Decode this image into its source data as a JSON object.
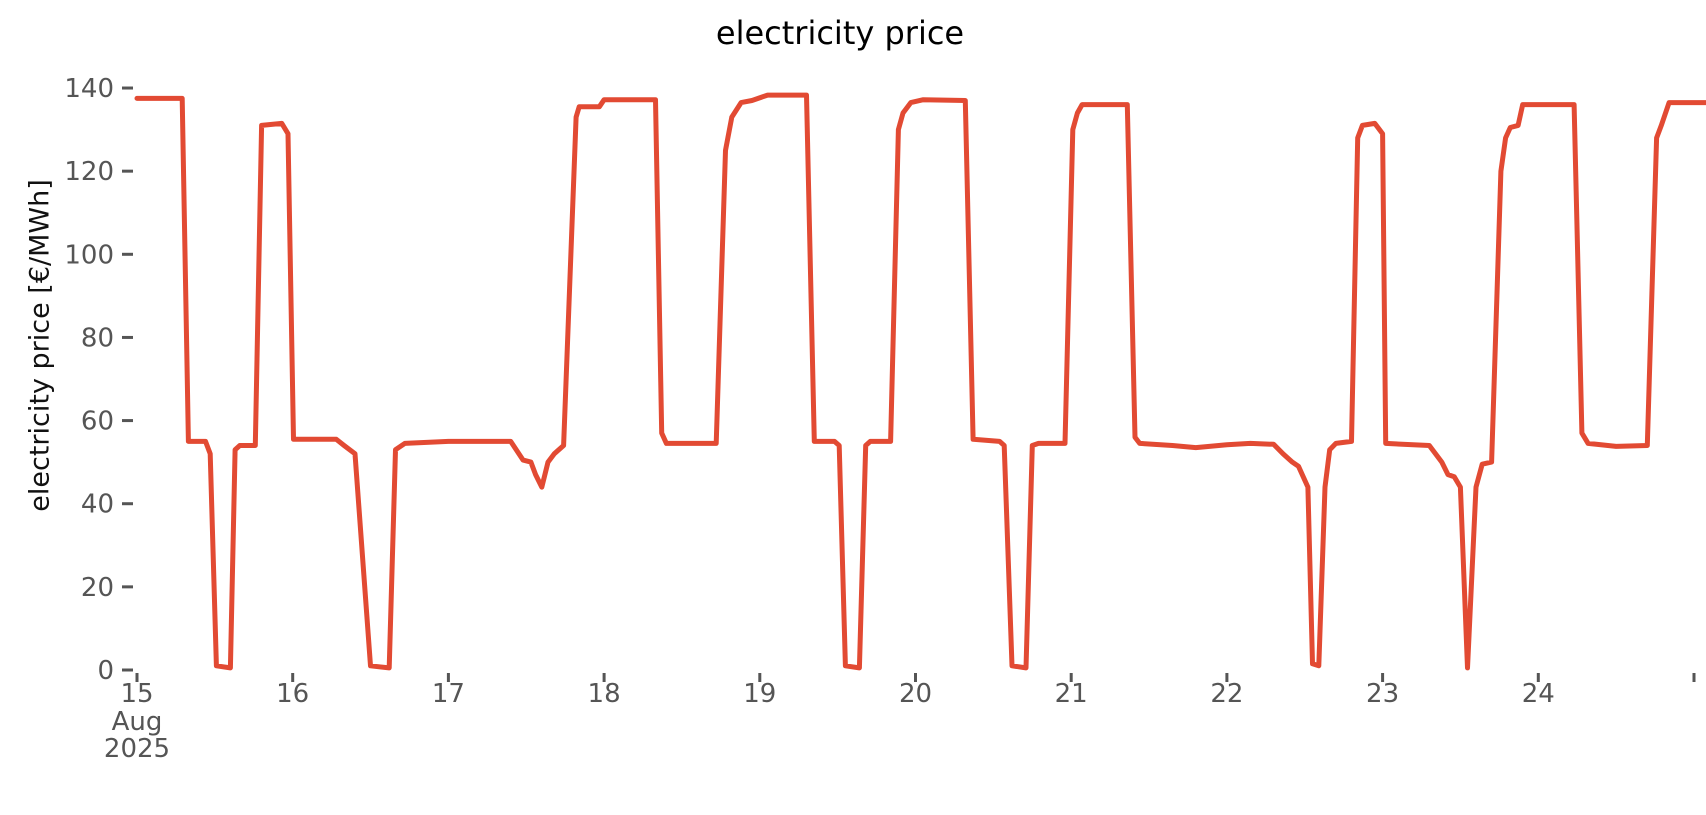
{
  "chart_data": {
    "type": "line",
    "title": "electricity price",
    "ylabel": "electricity price [€/MWh]",
    "xlabel": "",
    "ylim": [
      0,
      140
    ],
    "y_ticks": [
      0,
      20,
      40,
      60,
      80,
      100,
      120,
      140
    ],
    "x_axis": {
      "unit": "days since 2025-08-15 00:00",
      "tick_days": [
        0,
        1,
        2,
        3,
        4,
        5,
        6,
        7,
        8,
        9,
        10
      ],
      "tick_labels": [
        "15",
        "16",
        "17",
        "18",
        "19",
        "20",
        "21",
        "22",
        "23",
        "24",
        ""
      ],
      "first_tick_sub_labels": [
        "Aug",
        "2025"
      ]
    },
    "grid": false,
    "legend": "none",
    "series": [
      {
        "name": "electricity price",
        "unit": "€/MWh",
        "color": "#E24A33",
        "points": [
          [
            0.0,
            137.5
          ],
          [
            0.29,
            137.5
          ],
          [
            0.33,
            55
          ],
          [
            0.44,
            55
          ],
          [
            0.47,
            52
          ],
          [
            0.51,
            1
          ],
          [
            0.6,
            0.5
          ],
          [
            0.63,
            53
          ],
          [
            0.66,
            54
          ],
          [
            0.76,
            54
          ],
          [
            0.8,
            131
          ],
          [
            0.93,
            131.5
          ],
          [
            0.97,
            129
          ],
          [
            1.005,
            55.5
          ],
          [
            1.28,
            55.5
          ],
          [
            1.33,
            54
          ],
          [
            1.4,
            52
          ],
          [
            1.5,
            1
          ],
          [
            1.62,
            0.5
          ],
          [
            1.66,
            53
          ],
          [
            1.72,
            54.5
          ],
          [
            2.0,
            55
          ],
          [
            2.4,
            55
          ],
          [
            2.48,
            50.5
          ],
          [
            2.53,
            50
          ],
          [
            2.56,
            47
          ],
          [
            2.6,
            44
          ],
          [
            2.64,
            50
          ],
          [
            2.68,
            52
          ],
          [
            2.74,
            54
          ],
          [
            2.82,
            133
          ],
          [
            2.84,
            135.5
          ],
          [
            2.97,
            135.5
          ],
          [
            3.0,
            137.2
          ],
          [
            3.33,
            137.2
          ],
          [
            3.37,
            57
          ],
          [
            3.4,
            54.5
          ],
          [
            3.72,
            54.5
          ],
          [
            3.78,
            125
          ],
          [
            3.82,
            133
          ],
          [
            3.88,
            136.5
          ],
          [
            3.95,
            137
          ],
          [
            4.05,
            138.3
          ],
          [
            4.3,
            138.3
          ],
          [
            4.35,
            55
          ],
          [
            4.48,
            55
          ],
          [
            4.51,
            54
          ],
          [
            4.55,
            1
          ],
          [
            4.64,
            0.5
          ],
          [
            4.68,
            54
          ],
          [
            4.71,
            55
          ],
          [
            4.84,
            55
          ],
          [
            4.89,
            130
          ],
          [
            4.92,
            134
          ],
          [
            4.97,
            136.5
          ],
          [
            5.05,
            137.2
          ],
          [
            5.32,
            137
          ],
          [
            5.37,
            55.5
          ],
          [
            5.54,
            55
          ],
          [
            5.57,
            54
          ],
          [
            5.62,
            1
          ],
          [
            5.71,
            0.5
          ],
          [
            5.75,
            54
          ],
          [
            5.79,
            54.5
          ],
          [
            5.96,
            54.5
          ],
          [
            6.01,
            130
          ],
          [
            6.04,
            134
          ],
          [
            6.07,
            136
          ],
          [
            6.36,
            136
          ],
          [
            6.41,
            56
          ],
          [
            6.44,
            54.5
          ],
          [
            6.65,
            54
          ],
          [
            6.8,
            53.5
          ],
          [
            7.0,
            54.2
          ],
          [
            7.15,
            54.5
          ],
          [
            7.3,
            54.3
          ],
          [
            7.36,
            52
          ],
          [
            7.42,
            50
          ],
          [
            7.46,
            49
          ],
          [
            7.52,
            44
          ],
          [
            7.55,
            1.5
          ],
          [
            7.59,
            1
          ],
          [
            7.63,
            44
          ],
          [
            7.66,
            53
          ],
          [
            7.7,
            54.5
          ],
          [
            7.8,
            55
          ],
          [
            7.84,
            128
          ],
          [
            7.87,
            131
          ],
          [
            7.95,
            131.5
          ],
          [
            8.0,
            129
          ],
          [
            8.02,
            54.5
          ],
          [
            8.3,
            54
          ],
          [
            8.38,
            50
          ],
          [
            8.42,
            47
          ],
          [
            8.46,
            46.5
          ],
          [
            8.5,
            44
          ],
          [
            8.545,
            0.5
          ],
          [
            8.6,
            44
          ],
          [
            8.64,
            49.5
          ],
          [
            8.7,
            50
          ],
          [
            8.76,
            120
          ],
          [
            8.79,
            128
          ],
          [
            8.82,
            130.5
          ],
          [
            8.87,
            131
          ],
          [
            8.9,
            136
          ],
          [
            9.23,
            136
          ],
          [
            9.28,
            57
          ],
          [
            9.32,
            54.5
          ],
          [
            9.5,
            53.8
          ],
          [
            9.7,
            54
          ],
          [
            9.76,
            128
          ],
          [
            9.79,
            131
          ],
          [
            9.84,
            136.5
          ],
          [
            10.08,
            136.5
          ]
        ]
      }
    ]
  },
  "style": {
    "line_color": "#E24A33",
    "line_width": 5,
    "tick_color": "#555555",
    "title_color": "#000000",
    "background": "#ffffff"
  }
}
